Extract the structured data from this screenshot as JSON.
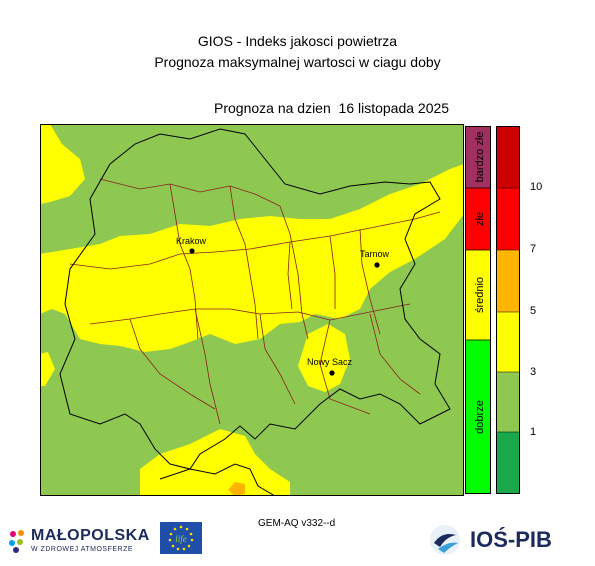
{
  "header": {
    "title": "GIOS - Indeks jakosci powietrza",
    "subtitle": "Prognoza maksymalnej wartosci w ciagu doby",
    "forecast_date": "Prognoza na dzien  16 listopada 2025"
  },
  "map": {
    "cities": [
      "Krakow",
      "Tarnow",
      "Nowy Sacz"
    ],
    "colors": {
      "background_green": "#8ec850",
      "forecast_yellow": "#ffff00",
      "orange": "#ffb400",
      "county_border": "#8b2020",
      "region_border": "#000000"
    }
  },
  "legend": {
    "categories": [
      "bardzo złe",
      "złe",
      "średnio",
      "dobrze"
    ],
    "category_colors": [
      "#a03060",
      "#ff0000",
      "#ffff00",
      "#00ff00"
    ],
    "scale_colors": [
      "#cc0000",
      "#ff0000",
      "#ffb400",
      "#ffff00",
      "#8ec850",
      "#1aa84a"
    ],
    "ticks": [
      "10",
      "7",
      "5",
      "3",
      "1"
    ]
  },
  "footer": {
    "model": "GEM-AQ v332--d",
    "logo_left_name": "MAŁOPOLSKA",
    "logo_left_tagline": "W ZDROWEJ ATMOSFERZE",
    "logo_eu_text": "life",
    "logo_right_name": "IOŚ-PIB"
  }
}
